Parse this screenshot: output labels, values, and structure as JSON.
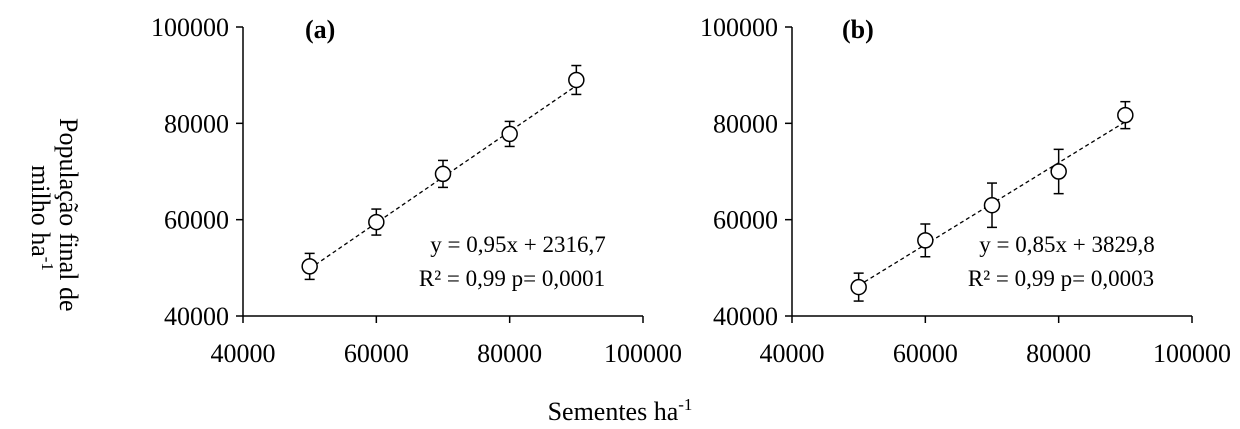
{
  "chart_data": [
    {
      "type": "scatter",
      "panel_label": "(a)",
      "x": [
        50000,
        60000,
        70000,
        80000,
        90000
      ],
      "y": [
        50300,
        59500,
        69500,
        77800,
        89000
      ],
      "err": [
        2700,
        2700,
        2800,
        2600,
        3000
      ],
      "xlim": [
        40000,
        100000
      ],
      "ylim": [
        40000,
        100000
      ],
      "xticks": [
        "40000",
        "60000",
        "80000",
        "100000"
      ],
      "yticks": [
        "40000",
        "60000",
        "80000",
        "100000"
      ],
      "trendline": {
        "slope": 0.95,
        "intercept": 2316.7
      },
      "equation": "y = 0,95x + 2316,7",
      "stats": "R² = 0,99    p= 0,0001",
      "grid": false
    },
    {
      "type": "scatter",
      "panel_label": "(b)",
      "x": [
        50000,
        60000,
        70000,
        80000,
        90000
      ],
      "y": [
        46000,
        55700,
        63000,
        70000,
        81700
      ],
      "err": [
        2900,
        3400,
        4600,
        4600,
        2800
      ],
      "xlim": [
        40000,
        100000
      ],
      "ylim": [
        40000,
        100000
      ],
      "xticks": [
        "40000",
        "60000",
        "80000",
        "100000"
      ],
      "yticks": [
        "40000",
        "60000",
        "80000",
        "100000"
      ],
      "trendline": {
        "slope": 0.85,
        "intercept": 3829.8
      },
      "equation": "y = 0,85x + 3829,8",
      "stats": "R² = 0,99    p= 0,0003",
      "grid": false
    }
  ],
  "ylabel_line1": "População final de",
  "ylabel_line2_main": "milho ha",
  "ylabel_sup": "-1",
  "xlabel_main": "Sementes ha",
  "xlabel_sup": "-1"
}
